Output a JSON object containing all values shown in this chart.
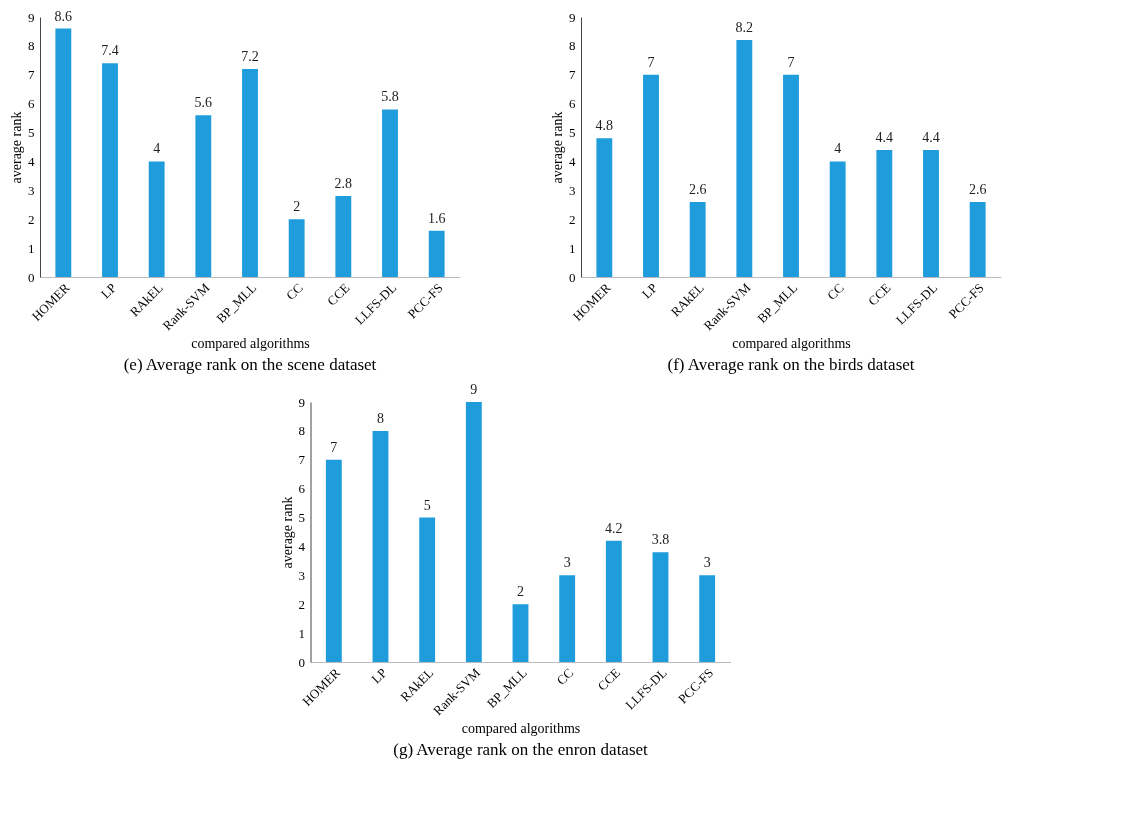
{
  "chart_data": [
    {
      "type": "bar",
      "title": "(e) Average rank on the scene dataset",
      "xlabel": "compared  algorithms",
      "ylabel": "average  rank",
      "categories": [
        "HOMER",
        "LP",
        "RAkEL",
        "Rank-SVM",
        "BP_MLL",
        "CC",
        "CCE",
        "LLFS-DL",
        "PCC-FS"
      ],
      "values": [
        8.6,
        7.4,
        4,
        5.6,
        7.2,
        2,
        2.8,
        5.8,
        1.6
      ],
      "color": "#1e9cdc",
      "ylim": [
        0,
        9
      ],
      "yticks": [
        0,
        1,
        2,
        3,
        4,
        5,
        6,
        7,
        8,
        9
      ],
      "data_labels": true,
      "grid": false
    },
    {
      "type": "bar",
      "title": "(f) Average rank on the birds dataset",
      "xlabel": "compared algorithms",
      "ylabel": "average  rank",
      "categories": [
        "HOMER",
        "LP",
        "RAkEL",
        "Rank-SVM",
        "BP_MLL",
        "CC",
        "CCE",
        "LLFS-DL",
        "PCC-FS"
      ],
      "values": [
        4.8,
        7,
        2.6,
        8.2,
        7,
        4,
        4.4,
        4.4,
        2.6
      ],
      "color": "#1e9cdc",
      "ylim": [
        0,
        9
      ],
      "yticks": [
        0,
        1,
        2,
        3,
        4,
        5,
        6,
        7,
        8,
        9
      ],
      "data_labels": true,
      "grid": false
    },
    {
      "type": "bar",
      "title": "(g) Average rank on the enron dataset",
      "xlabel": "compared algorithms",
      "ylabel": "average  rank",
      "categories": [
        "HOMER",
        "LP",
        "RAkEL",
        "Rank-SVM",
        "BP_MLL",
        "CC",
        "CCE",
        "LLFS-DL",
        "PCC-FS"
      ],
      "values": [
        7,
        8,
        5,
        9,
        2,
        3,
        4.2,
        3.8,
        3
      ],
      "color": "#1e9cdc",
      "ylim": [
        0,
        9
      ],
      "yticks": [
        0,
        1,
        2,
        3,
        4,
        5,
        6,
        7,
        8,
        9
      ],
      "data_labels": true,
      "grid": false
    }
  ]
}
